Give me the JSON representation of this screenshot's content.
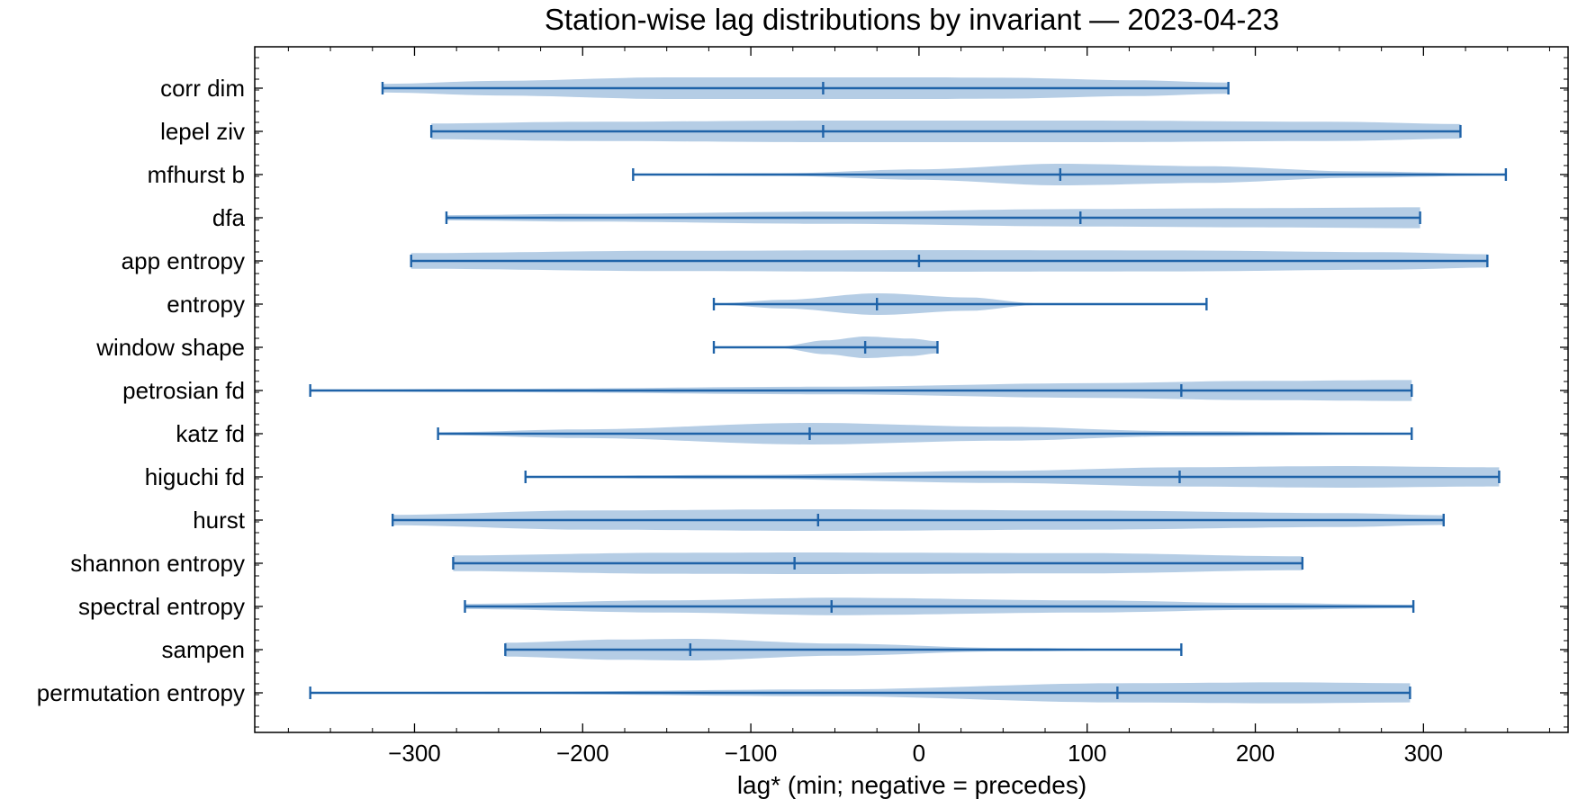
{
  "chart_data": {
    "type": "violin",
    "orientation": "horizontal",
    "title": "Station-wise lag distributions by invariant — 2023-04-23",
    "xlabel": "lag* (min; negative = precedes)",
    "ylabel": "",
    "xlim": [
      -395,
      386
    ],
    "xticks": [
      -300,
      -200,
      -100,
      0,
      100,
      200,
      300
    ],
    "xtick_labels": [
      "−300",
      "−200",
      "−100",
      "0",
      "100",
      "200",
      "300"
    ],
    "grid": false,
    "colors": {
      "fill": "#a8c4e0",
      "line": "#1f63a8"
    },
    "categories": [
      "corr dim",
      "lepel ziv",
      "mfhurst b",
      "dfa",
      "app entropy",
      "entropy",
      "window shape",
      "petrosian fd",
      "katz fd",
      "higuchi fd",
      "hurst",
      "shannon entropy",
      "spectral entropy",
      "sampen",
      "permutation entropy"
    ],
    "violins": [
      {
        "category": "corr dim",
        "min": -319,
        "median": -57,
        "max": 184,
        "shape": [
          [
            -319,
            0.25
          ],
          [
            -250,
            0.42
          ],
          [
            -150,
            0.62
          ],
          [
            -57,
            0.68
          ],
          [
            50,
            0.6
          ],
          [
            130,
            0.45
          ],
          [
            184,
            0.32
          ]
        ]
      },
      {
        "category": "lepel ziv",
        "min": -290,
        "median": -57,
        "max": 322,
        "shape": [
          [
            -290,
            0.45
          ],
          [
            -200,
            0.55
          ],
          [
            -57,
            0.62
          ],
          [
            100,
            0.62
          ],
          [
            250,
            0.55
          ],
          [
            322,
            0.42
          ]
        ]
      },
      {
        "category": "mfhurst b",
        "min": -170,
        "median": 84,
        "max": 349,
        "shape": [
          [
            -170,
            0.03
          ],
          [
            -80,
            0.08
          ],
          [
            0,
            0.3
          ],
          [
            84,
            0.62
          ],
          [
            170,
            0.48
          ],
          [
            260,
            0.18
          ],
          [
            349,
            0.05
          ]
        ]
      },
      {
        "category": "dfa",
        "min": -281,
        "median": 96,
        "max": 298,
        "shape": [
          [
            -281,
            0.15
          ],
          [
            -200,
            0.22
          ],
          [
            -50,
            0.35
          ],
          [
            96,
            0.5
          ],
          [
            200,
            0.55
          ],
          [
            298,
            0.6
          ]
        ]
      },
      {
        "category": "app entropy",
        "min": -302,
        "median": 0,
        "max": 338,
        "shape": [
          [
            -302,
            0.45
          ],
          [
            -150,
            0.58
          ],
          [
            0,
            0.62
          ],
          [
            150,
            0.6
          ],
          [
            280,
            0.5
          ],
          [
            338,
            0.38
          ]
        ]
      },
      {
        "category": "entropy",
        "min": -122,
        "median": -25,
        "max": 171,
        "shape": [
          [
            -122,
            0.03
          ],
          [
            -80,
            0.25
          ],
          [
            -25,
            0.62
          ],
          [
            30,
            0.38
          ],
          [
            70,
            0.05
          ],
          [
            171,
            0.0
          ]
        ]
      },
      {
        "category": "window shape",
        "min": -122,
        "median": -32,
        "max": 11,
        "shape": [
          [
            -122,
            0.0
          ],
          [
            -85,
            0.02
          ],
          [
            -55,
            0.4
          ],
          [
            -32,
            0.62
          ],
          [
            -5,
            0.5
          ],
          [
            11,
            0.35
          ]
        ]
      },
      {
        "category": "petrosian fd",
        "min": -362,
        "median": 156,
        "max": 293,
        "shape": [
          [
            -362,
            0.06
          ],
          [
            -250,
            0.1
          ],
          [
            -50,
            0.22
          ],
          [
            100,
            0.42
          ],
          [
            200,
            0.55
          ],
          [
            293,
            0.6
          ]
        ]
      },
      {
        "category": "katz fd",
        "min": -286,
        "median": -65,
        "max": 293,
        "shape": [
          [
            -286,
            0.08
          ],
          [
            -200,
            0.25
          ],
          [
            -65,
            0.62
          ],
          [
            50,
            0.4
          ],
          [
            150,
            0.15
          ],
          [
            293,
            0.05
          ]
        ]
      },
      {
        "category": "higuchi fd",
        "min": -234,
        "median": 155,
        "max": 345,
        "shape": [
          [
            -234,
            0.05
          ],
          [
            -100,
            0.12
          ],
          [
            50,
            0.35
          ],
          [
            155,
            0.55
          ],
          [
            250,
            0.62
          ],
          [
            345,
            0.55
          ]
        ]
      },
      {
        "category": "hurst",
        "min": -313,
        "median": -60,
        "max": 312,
        "shape": [
          [
            -313,
            0.3
          ],
          [
            -200,
            0.55
          ],
          [
            -60,
            0.62
          ],
          [
            100,
            0.55
          ],
          [
            250,
            0.4
          ],
          [
            312,
            0.28
          ]
        ]
      },
      {
        "category": "shannon entropy",
        "min": -277,
        "median": -74,
        "max": 228,
        "shape": [
          [
            -277,
            0.45
          ],
          [
            -150,
            0.6
          ],
          [
            -74,
            0.62
          ],
          [
            100,
            0.58
          ],
          [
            228,
            0.4
          ]
        ]
      },
      {
        "category": "spectral entropy",
        "min": -270,
        "median": -52,
        "max": 294,
        "shape": [
          [
            -270,
            0.15
          ],
          [
            -150,
            0.35
          ],
          [
            -52,
            0.5
          ],
          [
            100,
            0.35
          ],
          [
            200,
            0.2
          ],
          [
            294,
            0.1
          ]
        ]
      },
      {
        "category": "sampen",
        "min": -246,
        "median": -136,
        "max": 156,
        "shape": [
          [
            -246,
            0.4
          ],
          [
            -180,
            0.58
          ],
          [
            -136,
            0.62
          ],
          [
            -50,
            0.35
          ],
          [
            50,
            0.1
          ],
          [
            156,
            0.0
          ]
        ]
      },
      {
        "category": "permutation entropy",
        "min": -362,
        "median": 118,
        "max": 292,
        "shape": [
          [
            -362,
            0.04
          ],
          [
            -250,
            0.06
          ],
          [
            -50,
            0.2
          ],
          [
            118,
            0.55
          ],
          [
            220,
            0.6
          ],
          [
            292,
            0.55
          ]
        ]
      }
    ]
  }
}
